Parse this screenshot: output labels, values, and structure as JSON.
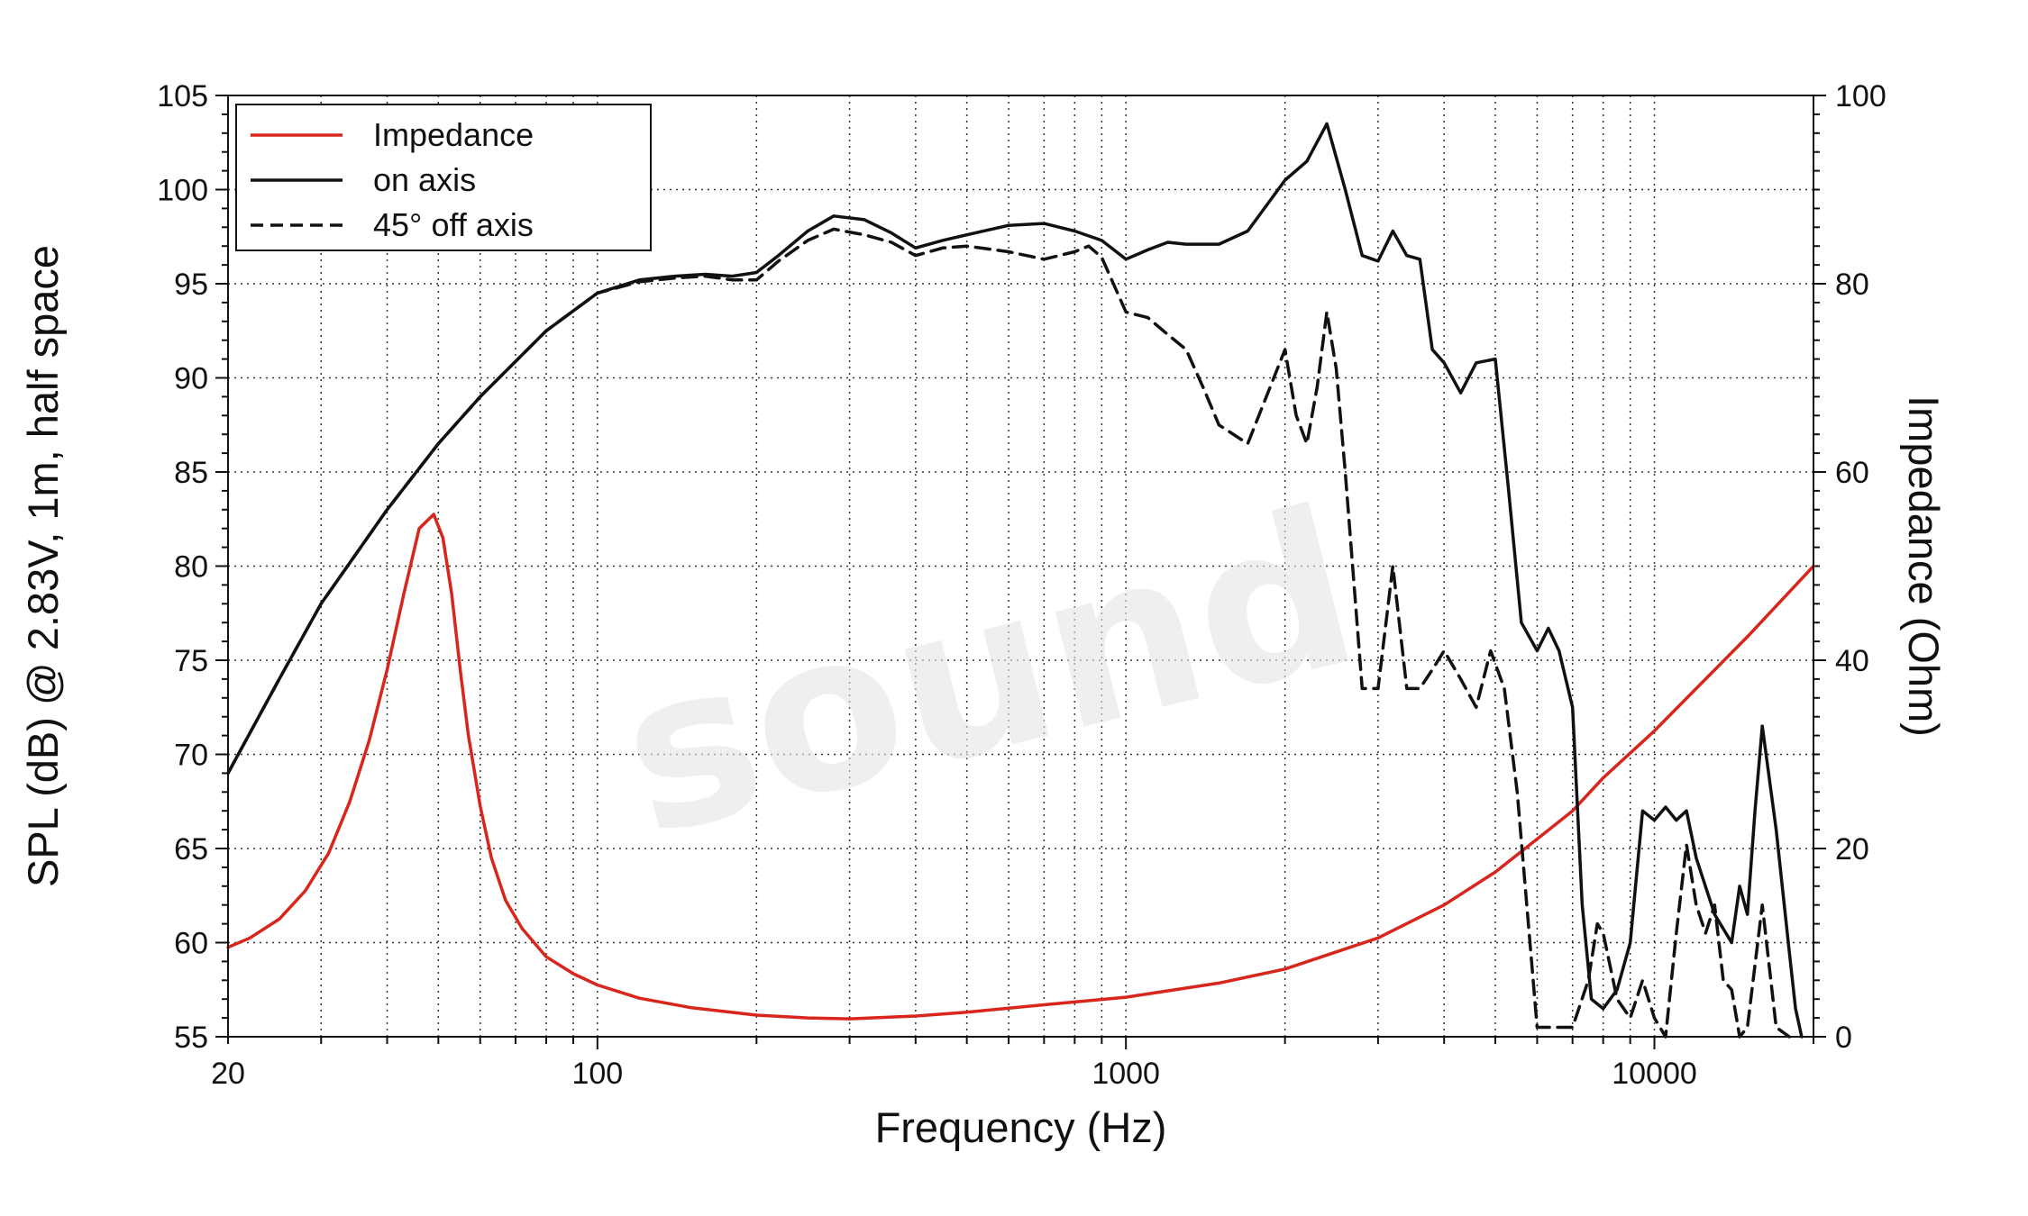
{
  "chart_data": {
    "type": "line",
    "xlabel": "Frequency (Hz)",
    "ylabel": "SPL (dB) @ 2.83V, 1m, half space",
    "y2label": "Impedance (Ohm)",
    "xscale": "log",
    "xlim": [
      20,
      20000
    ],
    "ylim": [
      55,
      105
    ],
    "y2lim": [
      0,
      100
    ],
    "grid": true,
    "legend_position": "top-left",
    "watermark": "sound",
    "x_ticks": [
      "20",
      "100",
      "1000",
      "10000"
    ],
    "x_tick_values": [
      20,
      100,
      1000,
      10000
    ],
    "y_ticks": [
      "55",
      "60",
      "65",
      "70",
      "75",
      "80",
      "85",
      "90",
      "95",
      "100",
      "105"
    ],
    "y2_ticks": [
      "0",
      "20",
      "40",
      "60",
      "80",
      "100"
    ],
    "series": [
      {
        "name": "Impedance",
        "axis": "right",
        "color": "#d8261c",
        "dash": "solid",
        "x": [
          20,
          22,
          25,
          28,
          31,
          34,
          37,
          40,
          43,
          46,
          49,
          51,
          53,
          55,
          57,
          60,
          63,
          67,
          72,
          80,
          90,
          100,
          120,
          150,
          200,
          250,
          300,
          400,
          500,
          700,
          1000,
          1500,
          2000,
          3000,
          4000,
          5000,
          6000,
          7000,
          8000,
          10000,
          12000,
          15000,
          20000
        ],
        "y": [
          9.5,
          10.5,
          12.5,
          15.5,
          19.5,
          25,
          31.5,
          39,
          47,
          54,
          55.5,
          53,
          47,
          39,
          32,
          24.5,
          19,
          14.5,
          11.5,
          8.5,
          6.7,
          5.5,
          4.1,
          3.1,
          2.3,
          2.0,
          1.9,
          2.2,
          2.6,
          3.4,
          4.2,
          5.7,
          7.2,
          10.5,
          14.0,
          17.5,
          21.0,
          24.0,
          27.5,
          32.5,
          37.0,
          42.5,
          50
        ]
      },
      {
        "name": "on axis",
        "axis": "left",
        "color": "#111111",
        "dash": "solid",
        "x": [
          20,
          25,
          30,
          40,
          50,
          60,
          80,
          100,
          120,
          140,
          160,
          180,
          200,
          220,
          250,
          280,
          320,
          360,
          400,
          450,
          500,
          600,
          700,
          800,
          900,
          1000,
          1100,
          1200,
          1300,
          1500,
          1700,
          2000,
          2200,
          2400,
          2600,
          2800,
          3000,
          3200,
          3400,
          3600,
          3800,
          4000,
          4300,
          4600,
          5000,
          5300,
          5600,
          6000,
          6300,
          6600,
          7000,
          7300,
          7600,
          8000,
          8500,
          9000,
          9500,
          10000,
          10500,
          11000,
          11500,
          12000,
          13000,
          14000,
          14500,
          15000,
          15500,
          16000,
          17000,
          18000,
          18500,
          19000
        ],
        "y": [
          69,
          74,
          78,
          83,
          86.5,
          89,
          92.5,
          94.5,
          95.2,
          95.4,
          95.5,
          95.4,
          95.6,
          96.5,
          97.8,
          98.6,
          98.4,
          97.7,
          96.9,
          97.3,
          97.6,
          98.1,
          98.2,
          97.8,
          97.3,
          96.3,
          96.8,
          97.2,
          97.1,
          97.1,
          97.8,
          100.5,
          101.5,
          103.5,
          100,
          96.5,
          96.2,
          97.8,
          96.5,
          96.3,
          91.5,
          90.8,
          89.2,
          90.8,
          91,
          84,
          77,
          75.5,
          76.7,
          75.5,
          72.5,
          62,
          57,
          56.5,
          57.5,
          60,
          67,
          66.5,
          67.2,
          66.5,
          67,
          64.5,
          61.5,
          60,
          63,
          61.5,
          67,
          71.5,
          66,
          59.5,
          56.5,
          54
        ]
      },
      {
        "name": "45° off axis",
        "axis": "left",
        "color": "#111111",
        "dash": "dashed",
        "x": [
          20,
          25,
          30,
          40,
          50,
          60,
          80,
          100,
          120,
          140,
          160,
          180,
          200,
          220,
          250,
          280,
          320,
          360,
          400,
          450,
          500,
          600,
          700,
          800,
          850,
          900,
          1000,
          1100,
          1200,
          1300,
          1400,
          1500,
          1700,
          2000,
          2100,
          2200,
          2300,
          2400,
          2500,
          2600,
          2800,
          3000,
          3200,
          3400,
          3600,
          3800,
          4000,
          4300,
          4600,
          4900,
          5200,
          5500,
          6000,
          6500,
          7000,
          7500,
          7800,
          8000,
          8500,
          9000,
          9500,
          10000,
          10500,
          11000,
          11500,
          12000,
          12500,
          13000,
          13500,
          14000,
          14500,
          15000,
          16000,
          17000,
          18000
        ],
        "y": [
          69,
          74,
          78,
          83,
          86.5,
          89,
          92.5,
          94.5,
          95.1,
          95.3,
          95.4,
          95.2,
          95.2,
          96.2,
          97.3,
          97.9,
          97.6,
          97.2,
          96.5,
          96.9,
          97,
          96.7,
          96.3,
          96.7,
          97,
          96.4,
          93.5,
          93.2,
          92.3,
          91.5,
          89.5,
          87.5,
          86.5,
          91.5,
          88,
          86.5,
          89.5,
          93.5,
          90.5,
          85,
          73.5,
          73.5,
          80,
          73.5,
          73.5,
          74.5,
          75.5,
          74,
          72.5,
          75.5,
          73.5,
          68,
          55.5,
          55.5,
          55.5,
          58,
          61,
          60.5,
          57,
          56,
          58,
          56,
          54.5,
          60.5,
          65.2,
          62,
          60.5,
          62,
          58,
          57.5,
          54.5,
          55.5,
          62,
          55.5,
          55
        ]
      }
    ]
  }
}
